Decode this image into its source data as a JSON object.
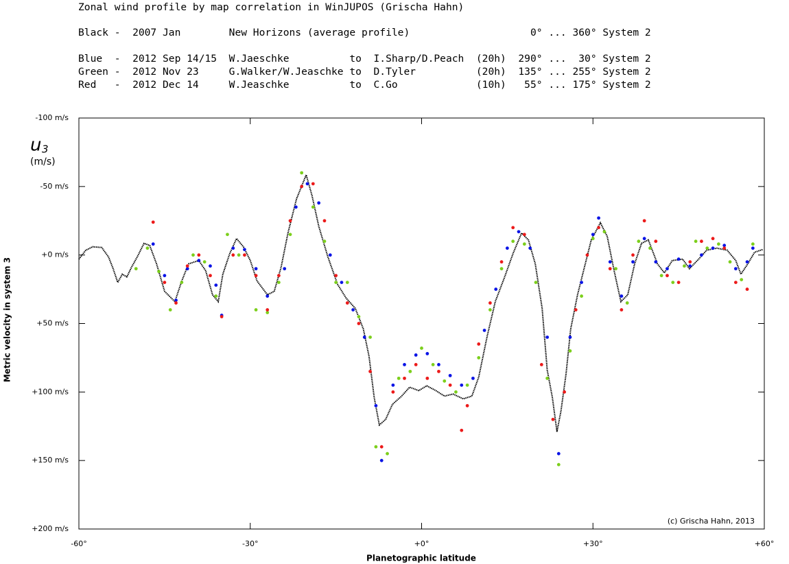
{
  "chart_data": {
    "type": "scatter",
    "title": "Zonal wind profile by map correlation in WinJUPOS (Grischa Hahn)",
    "y_symbol": "u",
    "y_symbol_subscript": "3",
    "y_unit": "(m/s)",
    "ylabel": "Metric velocity in system 3",
    "xlabel": "Planetographic latitude",
    "annotation": "(c) Grischa Hahn, 2013",
    "xlim": [
      -60,
      60
    ],
    "ylim": [
      -100,
      200
    ],
    "y_inverted": true,
    "xticks": [
      {
        "value": -60,
        "label": "-60°"
      },
      {
        "value": -30,
        "label": "-30°"
      },
      {
        "value": 0,
        "label": "+0°"
      },
      {
        "value": 30,
        "label": "+30°"
      },
      {
        "value": 60,
        "label": "+60°"
      }
    ],
    "yticks": [
      {
        "value": -100,
        "label": "-100 m/s"
      },
      {
        "value": -50,
        "label": "-50 m/s"
      },
      {
        "value": 0,
        "label": "+0 m/s"
      },
      {
        "value": 50,
        "label": "+50 m/s"
      },
      {
        "value": 100,
        "label": "+100 m/s"
      },
      {
        "value": 150,
        "label": "+150 m/s"
      },
      {
        "value": 200,
        "label": "+200 m/s"
      }
    ],
    "series": [
      {
        "name": "Black -  2007 Jan        New Horizons (average profile)                    0° ... 360° System 2",
        "color": "#000000",
        "mode": "line",
        "x": [
          -60,
          -58.8,
          -57.6,
          -56,
          -54.8,
          -54,
          -53.2,
          -52.4,
          -51.6,
          -50.8,
          -49.8,
          -48.6,
          -47.6,
          -46.4,
          -45,
          -43.2,
          -42,
          -40.8,
          -39,
          -37.8,
          -36.6,
          -35.6,
          -34.8,
          -33.6,
          -32.4,
          -31.2,
          -30,
          -28.8,
          -27,
          -25.8,
          -24.6,
          -23.4,
          -21.9,
          -20.2,
          -19.2,
          -18,
          -16.4,
          -14.7,
          -13.2,
          -11.6,
          -10.2,
          -9.2,
          -8.3,
          -7.4,
          -6.3,
          -5.1,
          -3.5,
          -2.1,
          -0.5,
          0.9,
          2.5,
          4,
          5.5,
          7.3,
          8.8,
          10,
          11.5,
          12.9,
          14.5,
          16,
          17.5,
          18.7,
          19.9,
          21.1,
          22,
          22.9,
          23.7,
          24.4,
          25.3,
          26.1,
          27.3,
          28.5,
          29.7,
          31.3,
          32.5,
          33.7,
          34.9,
          36.1,
          37.3,
          38.5,
          39.7,
          41.3,
          42.5,
          43.9,
          45.7,
          46.9,
          48.5,
          49.9,
          51.7,
          53.5,
          55,
          55.9,
          57.1,
          58.3,
          59.7
        ],
        "values": [
          3,
          -3.5,
          -6,
          -5.5,
          1.5,
          10,
          20,
          14,
          16,
          9,
          1.5,
          -8.5,
          -7,
          6.5,
          26.5,
          34,
          19,
          6.5,
          4,
          11.5,
          29,
          34,
          14,
          -1,
          -12,
          -6,
          4,
          19,
          29,
          26.5,
          9,
          -16,
          -41,
          -58.5,
          -43.5,
          -21,
          1.5,
          21.5,
          31.5,
          39,
          54,
          74,
          104,
          124,
          120,
          109,
          103,
          96.5,
          99,
          95.5,
          99,
          103,
          101.5,
          105,
          103,
          89,
          59,
          34,
          16.5,
          -1,
          -16,
          -11,
          6.5,
          39,
          84,
          104,
          129,
          114,
          86.5,
          54,
          29,
          9,
          -11,
          -23.5,
          -13.5,
          11.5,
          34,
          29,
          6.5,
          -8.5,
          -11,
          6.5,
          13,
          4,
          3,
          10,
          3,
          -3.5,
          -5,
          -3.5,
          4,
          14,
          6.5,
          -2,
          -4
        ]
      },
      {
        "name": "Blue  -  2012 Sep 14/15  W.Jaeschke          to  I.Sharp/D.Peach  (20h)  290° ...  30° System 2",
        "color": "#0a14e6",
        "mode": "points",
        "x": [
          -47,
          -45,
          -43,
          -41,
          -39,
          -37,
          -36,
          -35,
          -33,
          -31,
          -29,
          -27,
          -24,
          -22,
          -20,
          -18,
          -16,
          -14,
          -12,
          -10,
          -8,
          -7,
          -5,
          -3,
          -1,
          1,
          3,
          5,
          7,
          9,
          11,
          13,
          15,
          17,
          19,
          22,
          24,
          26,
          28,
          30,
          31,
          33,
          35,
          37,
          39,
          41,
          43,
          45,
          47,
          49,
          51,
          53,
          55,
          57,
          58
        ],
        "values": [
          -8,
          15,
          33,
          10,
          4,
          8,
          22,
          44,
          -5,
          -4,
          10,
          30,
          10,
          -35,
          -52,
          -38,
          0,
          20,
          40,
          60,
          110,
          150,
          95,
          80,
          73,
          72,
          80,
          88,
          95,
          90,
          55,
          25,
          -5,
          -17,
          -5,
          60,
          145,
          60,
          20,
          -15,
          -27,
          5,
          30,
          5,
          -12,
          5,
          10,
          3,
          8,
          0,
          -5,
          -7,
          10,
          5,
          -5
        ]
      },
      {
        "name": "Green -  2012 Nov 23     G.Walker/W.Jeaschke to  D.Tyler          (20h)  135° ... 255° System 2",
        "color": "#7ccf1c",
        "mode": "points",
        "x": [
          -50,
          -48,
          -46,
          -44,
          -42,
          -40,
          -38,
          -36,
          -34,
          -32,
          -29,
          -27,
          -25,
          -23,
          -21,
          -19,
          -17,
          -15,
          -13,
          -11,
          -9,
          -8,
          -6,
          -4,
          -2,
          0,
          2,
          4,
          6,
          8,
          10,
          12,
          14,
          16,
          18,
          20,
          22,
          24,
          26,
          28,
          30,
          32,
          34,
          36,
          38,
          40,
          42,
          44,
          46,
          48,
          50,
          52,
          54,
          56,
          58
        ],
        "values": [
          10,
          -5,
          12,
          40,
          20,
          0,
          5,
          30,
          -15,
          0,
          40,
          42,
          20,
          -15,
          -60,
          -35,
          -10,
          20,
          20,
          45,
          60,
          140,
          145,
          90,
          85,
          68,
          80,
          92,
          100,
          95,
          75,
          40,
          10,
          -10,
          -8,
          20,
          90,
          153,
          70,
          30,
          -12,
          -17,
          10,
          35,
          -10,
          -5,
          15,
          20,
          8,
          -10,
          -5,
          -8,
          5,
          18,
          -8
        ]
      },
      {
        "name": "Red   -  2012 Dec 14     W.Jeaschke          to  C.Go             (10h)   55° ... 175° System 2",
        "color": "#ec1a1a",
        "mode": "points",
        "x": [
          -47,
          -45,
          -43,
          -41,
          -39,
          -37,
          -35,
          -33,
          -31,
          -29,
          -27,
          -25,
          -23,
          -21,
          -19,
          -17,
          -15,
          -13,
          -11,
          -9,
          -7,
          -5,
          -3,
          -1,
          1,
          3,
          5,
          7,
          8,
          10,
          12,
          14,
          16,
          18,
          21,
          23,
          25,
          27,
          29,
          31,
          33,
          35,
          37,
          39,
          41,
          43,
          45,
          47,
          49,
          51,
          53,
          55,
          57
        ],
        "values": [
          -24,
          20,
          35,
          8,
          0,
          15,
          45,
          0,
          0,
          15,
          40,
          15,
          -25,
          -50,
          -52,
          -25,
          15,
          35,
          50,
          85,
          140,
          100,
          90,
          80,
          90,
          85,
          95,
          128,
          110,
          65,
          35,
          5,
          -20,
          -15,
          80,
          120,
          100,
          40,
          0,
          -20,
          10,
          40,
          0,
          -25,
          -10,
          15,
          20,
          5,
          -10,
          -12,
          -5,
          20,
          25
        ]
      }
    ]
  }
}
